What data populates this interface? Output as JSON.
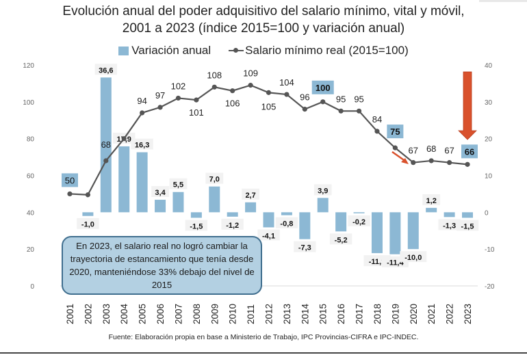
{
  "chart_data": {
    "type": "bar+line",
    "title": "Evolución anual del poder adquisitivo del salario mínimo, vital y móvil, 2001 a 2023 (índice 2015=100 y variación anual)",
    "title_lines": [
      "Evolución anual del poder adquisitivo del salario mínimo, vital y móvil,",
      "2001 a 2023 (índice 2015=100 y variación anual)"
    ],
    "categories": [
      "2001",
      "2002",
      "2003",
      "2004",
      "2005",
      "2006",
      "2007",
      "2008",
      "2009",
      "2010",
      "2011",
      "2012",
      "2013",
      "2014",
      "2015",
      "2016",
      "2017",
      "2018",
      "2019",
      "2020",
      "2021",
      "2022",
      "2023"
    ],
    "series": [
      {
        "name": "Variación anual",
        "type": "bar",
        "axis": "right",
        "color": "#8cb8d4",
        "values": [
          null,
          -1.0,
          36.6,
          17.9,
          16.3,
          3.4,
          5.5,
          -1.5,
          7.0,
          -1.2,
          2.7,
          -4.1,
          -0.8,
          -7.3,
          3.9,
          -5.2,
          -0.2,
          -11.1,
          -11.4,
          -10.0,
          1.2,
          -1.3,
          -1.5
        ],
        "labels": [
          "",
          "-1,0",
          "36,6",
          "17,9",
          "16,3",
          "3,4",
          "5,5",
          "-1,5",
          "7,0",
          "-1,2",
          "2,7",
          "-4,1",
          "-0,8",
          "-7,3",
          "3,9",
          "-5,2",
          "-0,2",
          "-11,1",
          "-11,4",
          "-10,0",
          "1,2",
          "-1,3",
          "-1,5"
        ]
      },
      {
        "name": "Salario mínimo real (2015=100)",
        "type": "line",
        "axis": "left",
        "color": "#555555",
        "values": [
          50,
          49.5,
          68,
          80,
          94,
          97,
          102,
          101,
          108,
          106,
          109,
          105,
          104,
          96,
          100,
          95,
          95,
          84,
          75,
          67,
          68,
          67,
          66
        ],
        "labels": [
          "50",
          "",
          "68",
          "",
          "94",
          "97",
          "102",
          "101",
          "108",
          "106",
          "109",
          "105",
          "104",
          "96",
          "100",
          "95",
          "95",
          "84",
          "75",
          "67",
          "68",
          "67",
          "66"
        ],
        "highlighted_labels": [
          "2001",
          "2015",
          "2019",
          "2023"
        ]
      }
    ],
    "y_left": {
      "ylim": [
        0,
        120
      ],
      "ticks": [
        "0",
        "20",
        "40",
        "60",
        "80",
        "100",
        "120"
      ]
    },
    "y_right": {
      "ylim": [
        -20,
        40
      ],
      "ticks": [
        "-20",
        "-10",
        "0",
        "10",
        "20",
        "30",
        "40"
      ]
    },
    "xlabel": "",
    "ylabel": "",
    "grid": false,
    "legend": {
      "position": "top",
      "entries": [
        "Variación anual",
        "Salario mínimo real (2015=100)"
      ]
    },
    "annotations": [
      {
        "type": "text-box",
        "text": "En 2023, el salario real no logró cambiar la trayectoria de estancamiento que tenía desde 2020, manteniéndose  33% debajo del nivel de 2015"
      },
      {
        "type": "arrow",
        "target": "2023",
        "color": "#d9512c",
        "direction": "down"
      },
      {
        "type": "arrow",
        "target": "2020",
        "color": "#d9512c",
        "direction": "down-right"
      }
    ]
  },
  "source": "Fuente: Elaboración propia en base a Ministerio de Trabajo, IPC Provincias-CIFRA e IPC-INDEC.",
  "annotation_text": "En 2023, el salario real no logró cambiar la trayectoria de estancamiento que tenía desde 2020, manteniéndose  33% debajo del nivel de 2015",
  "colors": {
    "bar": "#8cb8d4",
    "line": "#555555",
    "arrow": "#d9512c",
    "label_bg": "#f2f2f2",
    "highlight_bg": "#8cb8d4",
    "annot_bg": "#b3d0e2",
    "annot_border": "#3f6e8e"
  }
}
